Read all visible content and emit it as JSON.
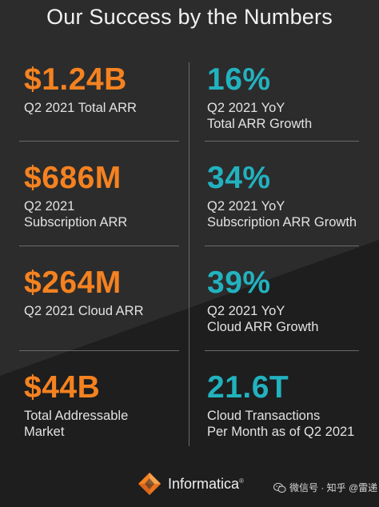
{
  "title": "Our Success by the Numbers",
  "stats": [
    {
      "value": "$1.24B",
      "line1": "Q2 2021 Total ARR",
      "line2": ""
    },
    {
      "value": "16%",
      "line1": "Q2 2021 YoY",
      "line2": "Total ARR Growth"
    },
    {
      "value": "$686M",
      "line1": "Q2 2021",
      "line2": "Subscription ARR"
    },
    {
      "value": "34%",
      "line1": "Q2 2021 YoY",
      "line2": "Subscription ARR Growth"
    },
    {
      "value": "$264M",
      "line1": "Q2 2021 Cloud ARR",
      "line2": ""
    },
    {
      "value": "39%",
      "line1": "Q2 2021 YoY",
      "line2": "Cloud ARR Growth"
    },
    {
      "value": "$44B",
      "line1": "Total Addressable",
      "line2": "Market"
    },
    {
      "value": "21.6T",
      "line1": "Cloud Transactions",
      "line2": "Per Month as of Q2 2021"
    }
  ],
  "footer": {
    "logo_text": "Informatica",
    "trademark": "®",
    "logo_icon": "informatica-logo"
  },
  "watermark": {
    "icon": "wechat-icon",
    "text": "微信号 · 知乎 @雷递"
  },
  "colors": {
    "orange": "#f58220",
    "teal": "#22b2bf",
    "background": "#262626"
  }
}
